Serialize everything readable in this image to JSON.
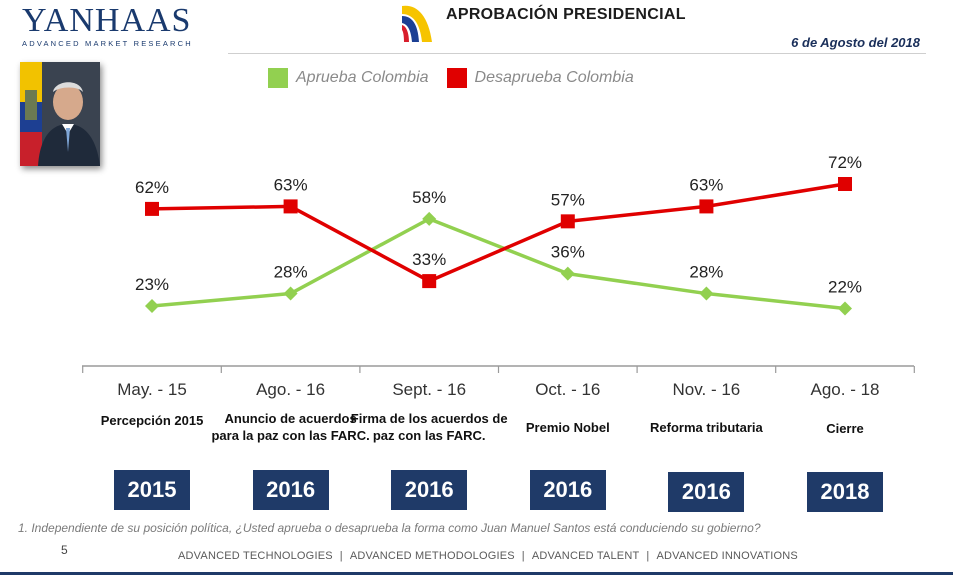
{
  "header": {
    "logo_main": "YANHAAS",
    "logo_sub": "ADVANCED MARKET RESEARCH",
    "title": "APROBACIÓN PRESIDENCIAL",
    "date": "6 de Agosto del 2018"
  },
  "chart_data": {
    "type": "line",
    "categories": [
      "May. - 15",
      "Ago. - 16",
      "Sept. - 16",
      "Oct. - 16",
      "Nov. - 16",
      "Ago. - 18"
    ],
    "series": [
      {
        "name": "Aprueba Colombia",
        "color": "#92d050",
        "marker": "diamond",
        "values": [
          23,
          28,
          58,
          36,
          28,
          22
        ],
        "labels": [
          "23%",
          "28%",
          "58%",
          "36%",
          "28%",
          "22%"
        ]
      },
      {
        "name": "Desaprueba Colombia",
        "color": "#e00000",
        "marker": "square",
        "values": [
          62,
          63,
          33,
          57,
          63,
          72
        ],
        "labels": [
          "62%",
          "63%",
          "33%",
          "57%",
          "63%",
          "72%"
        ]
      }
    ],
    "ylim": [
      0,
      100
    ],
    "grid": false,
    "legend_position": "top"
  },
  "events": [
    "Percepción 2015",
    "Anuncio de acuerdos para la paz con las FARC.",
    "Firma de los acuerdos de paz con las FARC.",
    "Premio Nobel",
    "Reforma tributaria",
    "Cierre"
  ],
  "years": [
    "2015",
    "2016",
    "2016",
    "2016",
    "2016",
    "2018"
  ],
  "footnote": "1. Independiente de su posición política, ¿Usted aprueba o desaprueba la forma como Juan Manuel Santos está conduciendo su gobierno?",
  "page_number": "5",
  "footer": {
    "items": [
      "ADVANCED TECHNOLOGIES",
      "ADVANCED METHODOLOGIES",
      "ADVANCED TALENT",
      "ADVANCED INNOVATIONS"
    ],
    "separator": "|"
  },
  "colors": {
    "navy": "#1f3a68",
    "green": "#92d050",
    "red": "#e00000"
  }
}
